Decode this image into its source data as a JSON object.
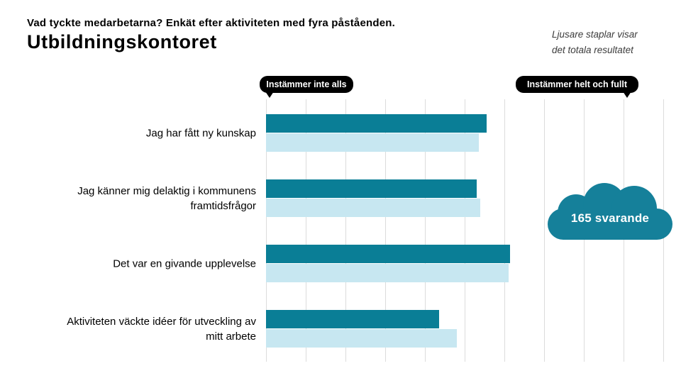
{
  "header": {
    "kicker": "Vad tyckte medarbetarna? Enkät efter aktiviteten med fyra påståenden.",
    "title": "Utbildningskontoret",
    "note_line1": "Ljusare staplar visar",
    "note_line2": "det totala resultatet"
  },
  "callouts": {
    "left": "Instämmer inte alls",
    "right": "Instämmer helt och fullt"
  },
  "cloud": {
    "label": "165 svarande",
    "color": "#15809a"
  },
  "colors": {
    "dark_bar": "#0a7e96",
    "light_bar": "#c7e7f1",
    "callout_bg": "#000000",
    "callout_text": "#ffffff",
    "gridline": "#dcdcdc",
    "text": "#000000",
    "note_text": "#3c3c3c"
  },
  "chart_data": {
    "type": "bar",
    "orientation": "horizontal",
    "title": "Vad tyckte medarbetarna? Enkät efter aktiviteten med fyra påståenden. Utbildningskontoret",
    "categories": [
      "Jag har fått ny kunskap",
      "Jag känner mig delaktig i kommunens framtidsfrågor",
      "Det var en givande upplevelse",
      "Aktiviteten väckte idéer för utveckling av mitt arbete"
    ],
    "categories_display": [
      "Jag har fått ny kunskap",
      "Jag känner mig delaktig i kommunens\nframtidsfrågor",
      "Det var en givande upplevelse",
      "Aktiviteten väckte idéer för utveckling av\nmitt arbete"
    ],
    "series": [
      {
        "name": "Utbildningskontoret (mörka staplar)",
        "color": "#0a7e96",
        "values": [
          55.5,
          53.0,
          61.5,
          43.5
        ]
      },
      {
        "name": "Totala resultatet (ljusa staplar)",
        "color": "#c7e7f1",
        "values": [
          53.5,
          54.0,
          61.0,
          48.0
        ]
      }
    ],
    "axis": {
      "min": 0,
      "max": 100,
      "gridline_interval": 10,
      "tick_labels_visible": false,
      "left_endpoint_label": "Instämmer inte alls",
      "right_endpoint_label": "Instämmer helt och fullt"
    },
    "grid": "vertical-lines",
    "legend_position": "none",
    "annotation": "165 svarande"
  }
}
